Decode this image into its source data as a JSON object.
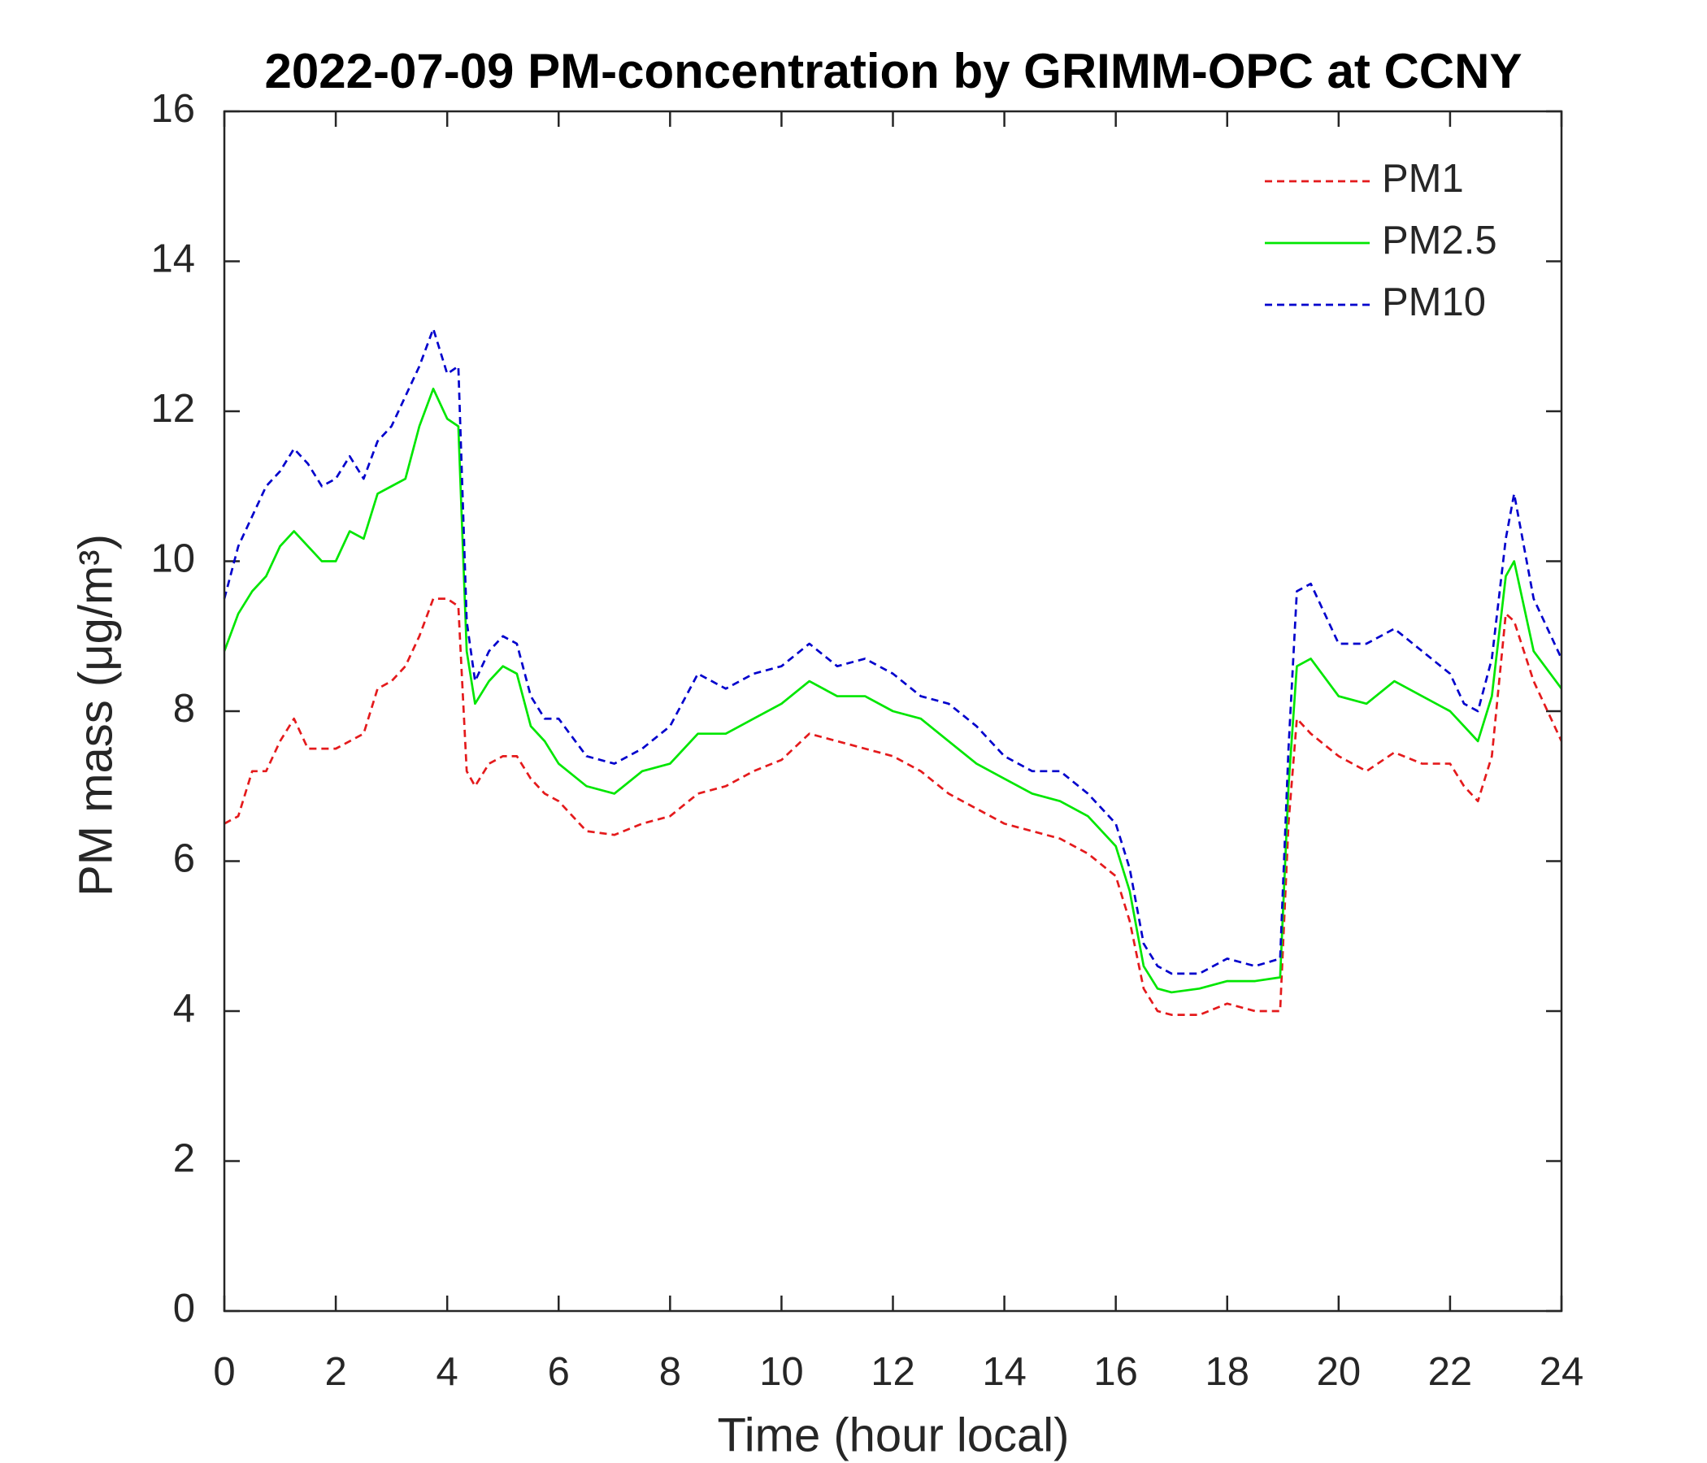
{
  "chart_data": {
    "type": "line",
    "title": "2022-07-09 PM-concentration by GRIMM-OPC at CCNY",
    "x_label": "Time (hour local)",
    "y_label": "PM mass (μg/m³)",
    "x": [
      0,
      0.25,
      0.5,
      0.75,
      1,
      1.25,
      1.5,
      1.75,
      2,
      2.25,
      2.5,
      2.75,
      3,
      3.25,
      3.5,
      3.75,
      4,
      4.2,
      4.35,
      4.5,
      4.75,
      5,
      5.25,
      5.5,
      5.75,
      6,
      6.5,
      7,
      7.5,
      8,
      8.5,
      9,
      9.5,
      10,
      10.5,
      11,
      11.5,
      12,
      12.5,
      13,
      13.5,
      14,
      14.5,
      15,
      15.5,
      16,
      16.25,
      16.5,
      16.75,
      17,
      17.5,
      18,
      18.5,
      18.95,
      19.1,
      19.25,
      19.5,
      20,
      20.5,
      21,
      21.5,
      22,
      22.25,
      22.5,
      22.75,
      23,
      23.15,
      23.5,
      24
    ],
    "series": [
      {
        "name": "PM1",
        "color": "#e41a1c",
        "dash": true,
        "values": [
          6.5,
          6.6,
          7.2,
          7.2,
          7.6,
          7.9,
          7.5,
          7.5,
          7.5,
          7.6,
          7.7,
          8.3,
          8.4,
          8.6,
          9.0,
          9.5,
          9.5,
          9.4,
          7.2,
          7.0,
          7.3,
          7.4,
          7.4,
          7.1,
          6.9,
          6.8,
          6.4,
          6.35,
          6.5,
          6.6,
          6.9,
          7.0,
          7.2,
          7.35,
          7.7,
          7.6,
          7.5,
          7.4,
          7.2,
          6.9,
          6.7,
          6.5,
          6.4,
          6.3,
          6.1,
          5.8,
          5.2,
          4.3,
          4.0,
          3.95,
          3.95,
          4.1,
          4.0,
          4.0,
          6.5,
          7.9,
          7.7,
          7.4,
          7.2,
          7.45,
          7.3,
          7.3,
          7.0,
          6.8,
          7.4,
          9.3,
          9.2,
          8.4,
          7.6
        ]
      },
      {
        "name": "PM2.5",
        "color": "#00e600",
        "dash": false,
        "values": [
          8.8,
          9.3,
          9.6,
          9.8,
          10.2,
          10.4,
          10.2,
          10.0,
          10.0,
          10.4,
          10.3,
          10.9,
          11.0,
          11.1,
          11.8,
          12.3,
          11.9,
          11.8,
          8.8,
          8.1,
          8.4,
          8.6,
          8.5,
          7.8,
          7.6,
          7.3,
          7.0,
          6.9,
          7.2,
          7.3,
          7.7,
          7.7,
          7.9,
          8.1,
          8.4,
          8.2,
          8.2,
          8.0,
          7.9,
          7.6,
          7.3,
          7.1,
          6.9,
          6.8,
          6.6,
          6.2,
          5.6,
          4.6,
          4.3,
          4.25,
          4.3,
          4.4,
          4.4,
          4.45,
          7.0,
          8.6,
          8.7,
          8.2,
          8.1,
          8.4,
          8.2,
          8.0,
          7.8,
          7.6,
          8.2,
          9.8,
          10.0,
          8.8,
          8.3
        ]
      },
      {
        "name": "PM10",
        "color": "#0000cc",
        "dash": true,
        "values": [
          9.5,
          10.2,
          10.6,
          11.0,
          11.2,
          11.5,
          11.3,
          11.0,
          11.1,
          11.4,
          11.1,
          11.6,
          11.8,
          12.2,
          12.6,
          13.1,
          12.5,
          12.6,
          9.2,
          8.4,
          8.8,
          9.0,
          8.9,
          8.2,
          7.9,
          7.9,
          7.4,
          7.3,
          7.5,
          7.8,
          8.5,
          8.3,
          8.5,
          8.6,
          8.9,
          8.6,
          8.7,
          8.5,
          8.2,
          8.1,
          7.8,
          7.4,
          7.2,
          7.2,
          6.9,
          6.5,
          5.9,
          4.9,
          4.6,
          4.5,
          4.5,
          4.7,
          4.6,
          4.7,
          7.5,
          9.6,
          9.7,
          8.9,
          8.9,
          9.1,
          8.8,
          8.5,
          8.1,
          8.0,
          8.7,
          10.3,
          10.9,
          9.5,
          8.7
        ]
      }
    ],
    "xlim": [
      0,
      24
    ],
    "xticks": [
      0,
      2,
      4,
      6,
      8,
      10,
      12,
      14,
      16,
      18,
      20,
      22,
      24
    ],
    "ylim": [
      0,
      16
    ],
    "yticks": [
      0,
      2,
      4,
      6,
      8,
      10,
      12,
      14,
      16
    ],
    "grid": false,
    "legend": "northeast"
  }
}
